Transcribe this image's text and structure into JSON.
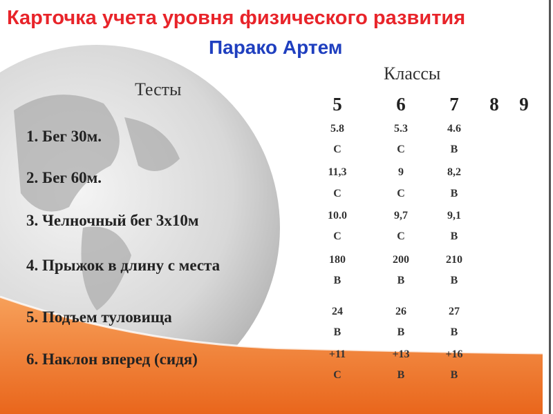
{
  "slide": {
    "title": "Карточка учета уровня физического развития",
    "subtitle": "Парако Артем",
    "classes_label": "Классы",
    "tests_label": "Тесты",
    "grades": [
      "5",
      "6",
      "7",
      "8",
      "9"
    ],
    "colors": {
      "title": "#e8242a",
      "subtitle": "#1f3fbf",
      "accent": "#f07a28"
    },
    "rows": [
      {
        "test": "1. Бег 30м.",
        "values": [
          [
            "5.8",
            "С"
          ],
          [
            "5.3",
            "С"
          ],
          [
            "4.6",
            "В"
          ]
        ]
      },
      {
        "test": "2. Бег 60м.",
        "values": [
          [
            "11,3",
            "С"
          ],
          [
            "9",
            "С"
          ],
          [
            "8,2",
            "В"
          ]
        ]
      },
      {
        "test": "3. Челночный бег 3х10м",
        "values": [
          [
            "10.0",
            "С"
          ],
          [
            "9,7",
            "С"
          ],
          [
            "9,1",
            "В"
          ]
        ]
      },
      {
        "test": "4. Прыжок в длину с места",
        "values": [
          [
            "180",
            "В"
          ],
          [
            "200",
            "В"
          ],
          [
            "210",
            "В"
          ]
        ]
      },
      {
        "test": "5. Подъем туловища",
        "values": [
          [
            "24",
            "В"
          ],
          [
            "26",
            "В"
          ],
          [
            "27",
            "В"
          ]
        ]
      },
      {
        "test": "6. Наклон вперед (сидя)",
        "values": [
          [
            "+11",
            "С"
          ],
          [
            "+13",
            "В"
          ],
          [
            "+16",
            "В"
          ]
        ]
      }
    ]
  }
}
